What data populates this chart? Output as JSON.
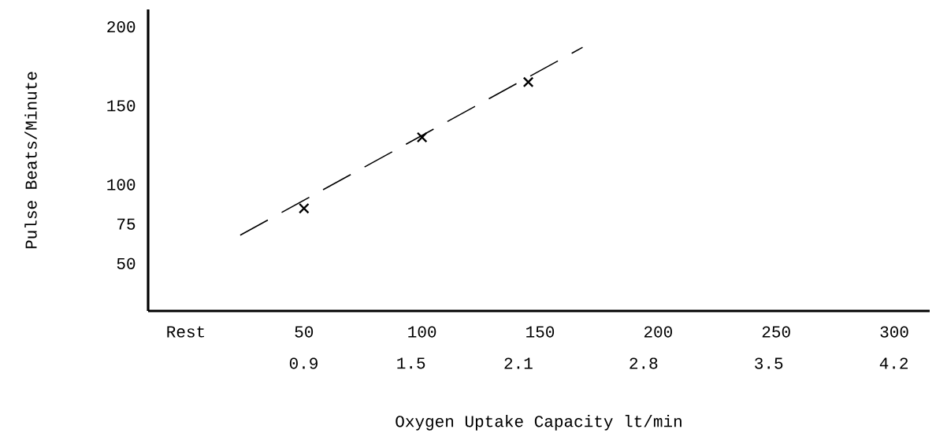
{
  "chart_data": {
    "type": "scatter",
    "xlabel": null,
    "ylabel": "Pulse Beats/Minute",
    "x2label": "Oxygen Uptake Capacity  lt/min",
    "xlim": [
      -16,
      315
    ],
    "xticks": [
      {
        "value": 0,
        "label": "Rest"
      },
      50,
      100,
      150,
      200,
      250,
      300
    ],
    "x2lim": [
      0.03,
      4.4
    ],
    "x2ticks": [
      0.9,
      1.5,
      2.1,
      2.8,
      3.5,
      4.2
    ],
    "ylim": [
      20,
      211
    ],
    "yticks": [
      50,
      75,
      100,
      150,
      200
    ],
    "series": [
      {
        "x": [
          50,
          100,
          145
        ],
        "values": [
          85,
          130,
          165
        ],
        "color": "#000000",
        "marker": "cross"
      },
      {
        "type": "line",
        "x": [
          23,
          168
        ],
        "values": [
          68,
          187
        ],
        "color": "#000000",
        "line_style": "dashed"
      }
    ]
  }
}
